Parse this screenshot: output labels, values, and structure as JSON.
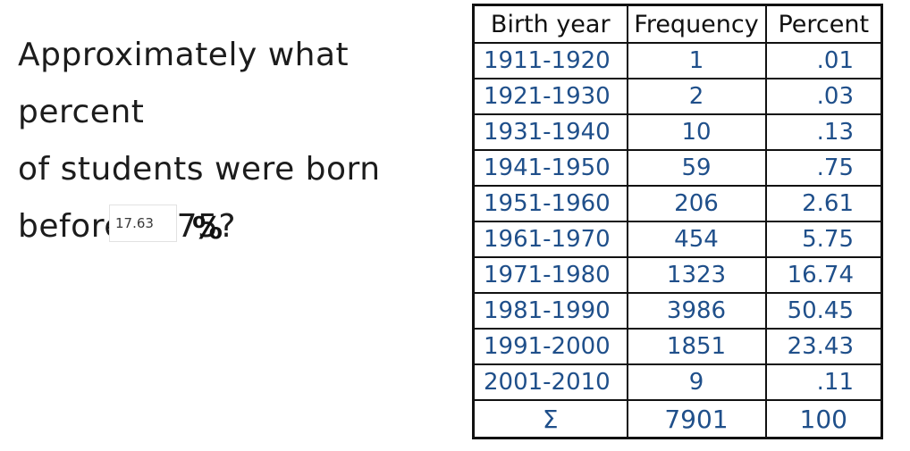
{
  "question": {
    "lines": [
      "Approximately what percent",
      "of students were born",
      "before 1975?"
    ]
  },
  "answer": {
    "value": "17.63",
    "unit": "%"
  },
  "table": {
    "headers": [
      "Birth year",
      "Frequency",
      "Percent"
    ],
    "rows": [
      [
        "1911-1920",
        "1",
        ".01"
      ],
      [
        "1921-1930",
        "2",
        ".03"
      ],
      [
        "1931-1940",
        "10",
        ".13"
      ],
      [
        "1941-1950",
        "59",
        ".75"
      ],
      [
        "1951-1960",
        "206",
        "2.61"
      ],
      [
        "1961-1970",
        "454",
        "5.75"
      ],
      [
        "1971-1980",
        "1323",
        "16.74"
      ],
      [
        "1981-1990",
        "3986",
        "50.45"
      ],
      [
        "1991-2000",
        "1851",
        "23.43"
      ],
      [
        "2001-2010",
        "9",
        ".11"
      ]
    ],
    "total": [
      "Σ",
      "7901",
      "100"
    ]
  },
  "colors": {
    "handwriting_ink": "#1f4f8a",
    "text": "#1c1c1c",
    "rule": "#111111"
  }
}
